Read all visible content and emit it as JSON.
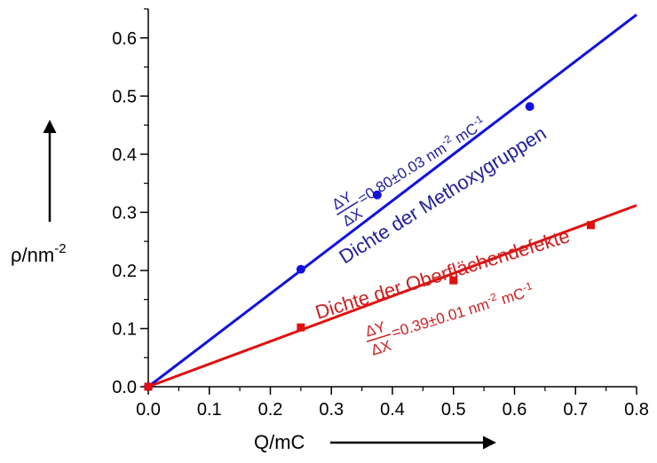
{
  "chart_data": {
    "type": "scatter",
    "xlabel": "Q/mC",
    "ylabel_main": "ρ/nm",
    "ylabel_exp": "-2",
    "xlim": [
      0.0,
      0.8
    ],
    "ylim": [
      0.0,
      0.65
    ],
    "x_ticks": [
      "0.0",
      "0.1",
      "0.2",
      "0.3",
      "0.4",
      "0.5",
      "0.6",
      "0.7",
      "0.8"
    ],
    "y_ticks": [
      "0.0",
      "0.1",
      "0.2",
      "0.3",
      "0.4",
      "0.5",
      "0.6"
    ],
    "grid": false,
    "series": [
      {
        "name": "Dichte der Methoxygruppen",
        "color": "#1010e0",
        "marker": "circle",
        "points": [
          [
            0.0,
            0.0
          ],
          [
            0.25,
            0.202
          ],
          [
            0.375,
            0.33
          ],
          [
            0.625,
            0.482
          ]
        ],
        "fit": {
          "slope": 0.8,
          "intercept": 0.0,
          "x_end": 0.8
        }
      },
      {
        "name": "Dichte der Oberflächendefekte",
        "color": "#e01010",
        "marker": "square",
        "points": [
          [
            0.0,
            0.0
          ],
          [
            0.25,
            0.102
          ],
          [
            0.5,
            0.183
          ],
          [
            0.725,
            0.278
          ]
        ],
        "fit": {
          "slope": 0.39,
          "intercept": 0.0,
          "x_end": 0.8
        }
      }
    ],
    "annotations": {
      "blue_name": "Dichte der Methoxygruppen",
      "blue_frac_num": "ΔY",
      "blue_frac_den": "ΔX",
      "blue_value": "=0.80±0.03 nm",
      "blue_exp1": "-2",
      "blue_unit": " mC",
      "blue_exp2": "-1",
      "red_name": "Dichte der Oberflächendefekte",
      "red_frac_num": "ΔY",
      "red_frac_den": "ΔX",
      "red_value": "=0.39±0.01 nm",
      "red_exp1": "-2",
      "red_unit": " mC",
      "red_exp2": "-1"
    }
  }
}
